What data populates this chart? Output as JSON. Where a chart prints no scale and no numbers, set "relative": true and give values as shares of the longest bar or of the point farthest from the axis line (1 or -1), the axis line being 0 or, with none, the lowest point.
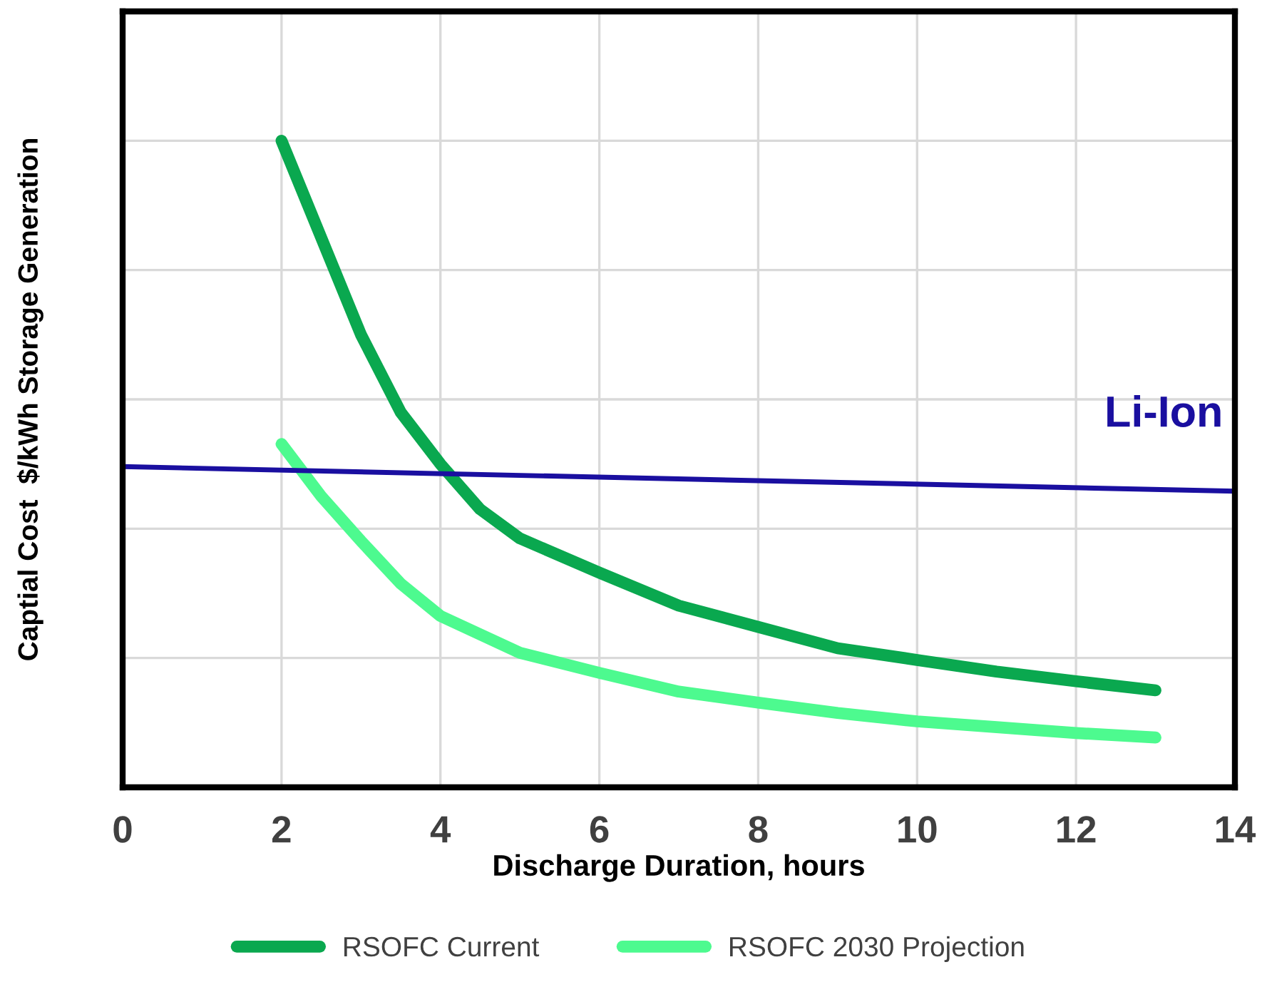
{
  "chart_data": {
    "type": "line",
    "relative": true,
    "xlabel": "Discharge Duration, hours",
    "ylabel": "Captial Cost  $/kWh Storage Generation",
    "xlim": [
      0,
      14
    ],
    "xticks": [
      0,
      2,
      4,
      6,
      8,
      10,
      12,
      14
    ],
    "grid": true,
    "legend": "bottom",
    "marker": "none",
    "line_style": "solid",
    "series": [
      {
        "name": "RSOFC Current",
        "color": "#0aa84f",
        "x": [
          2,
          2.5,
          3,
          3.5,
          4,
          4.5,
          5,
          6,
          7,
          8,
          9,
          10,
          11,
          12,
          13
        ],
        "values": [
          1.0,
          0.85,
          0.7,
          0.58,
          0.5,
          0.43,
          0.385,
          0.332,
          0.281,
          0.248,
          0.215,
          0.197,
          0.179,
          0.164,
          0.15
        ]
      },
      {
        "name": "RSOFC 2030 Projection",
        "color": "#4dfa8f",
        "x": [
          2,
          2.5,
          3,
          3.5,
          4,
          5,
          6,
          7,
          8,
          9,
          10,
          11,
          12,
          13
        ],
        "values": [
          0.531,
          0.45,
          0.381,
          0.315,
          0.265,
          0.208,
          0.177,
          0.148,
          0.131,
          0.115,
          0.102,
          0.093,
          0.084,
          0.077
        ]
      },
      {
        "color": "#1a0fa0",
        "x": [
          0,
          14
        ],
        "values": [
          0.496,
          0.458
        ]
      }
    ],
    "annotations": [
      {
        "text": "Li-Ion",
        "x": 14,
        "y": 0.458
      }
    ]
  }
}
